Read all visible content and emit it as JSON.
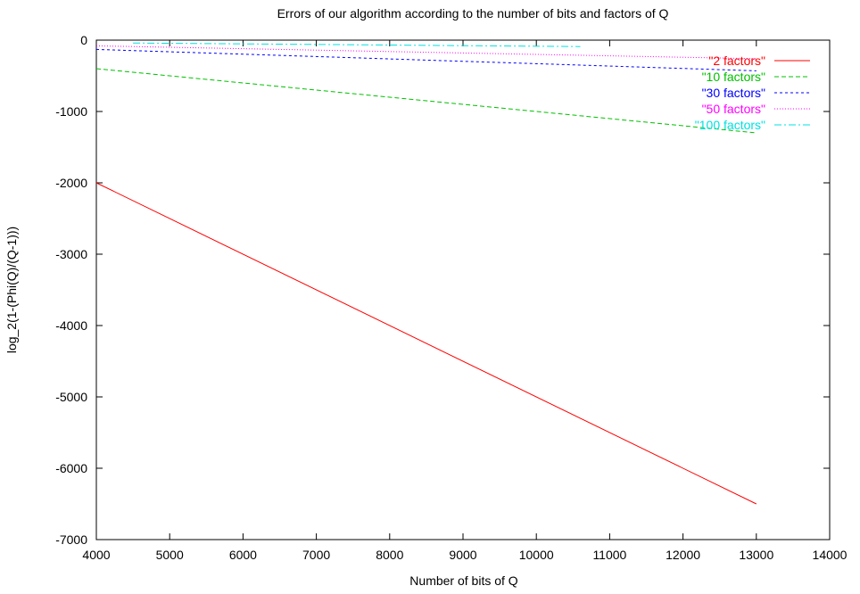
{
  "chart_data": {
    "type": "line",
    "title": "Errors of our algorithm according to the number of bits and factors of Q",
    "xlabel": "Number of bits of Q",
    "ylabel": "log_2(1-(Phi(Q)/(Q-1)))",
    "xlim": [
      4000,
      14000
    ],
    "ylim": [
      -7000,
      0
    ],
    "xticks": [
      4000,
      5000,
      6000,
      7000,
      8000,
      9000,
      10000,
      11000,
      12000,
      13000,
      14000
    ],
    "yticks": [
      0,
      -1000,
      -2000,
      -3000,
      -4000,
      -5000,
      -6000,
      -7000
    ],
    "grid": false,
    "legend_position": "top-right",
    "series": [
      {
        "name": "\"2 factors\"",
        "color": "#ff0000",
        "dash": "solid",
        "x": [
          4000,
          13000
        ],
        "y": [
          -2000,
          -6500
        ]
      },
      {
        "name": "\"10 factors\"",
        "color": "#00c000",
        "dash": "dashed",
        "x": [
          4000,
          13000
        ],
        "y": [
          -400,
          -1300
        ]
      },
      {
        "name": "\"30 factors\"",
        "color": "#0000ff",
        "dash": "dotted-dash",
        "x": [
          4000,
          13000
        ],
        "y": [
          -130,
          -430
        ]
      },
      {
        "name": "\"50 factors\"",
        "color": "#ff00ff",
        "dash": "dotted",
        "x": [
          4000,
          13000
        ],
        "y": [
          -80,
          -260
        ]
      },
      {
        "name": "\"100 factors\"",
        "color": "#00e0e0",
        "dash": "dash-dot",
        "x": [
          4500,
          10600
        ],
        "y": [
          -40,
          -90
        ]
      }
    ]
  }
}
